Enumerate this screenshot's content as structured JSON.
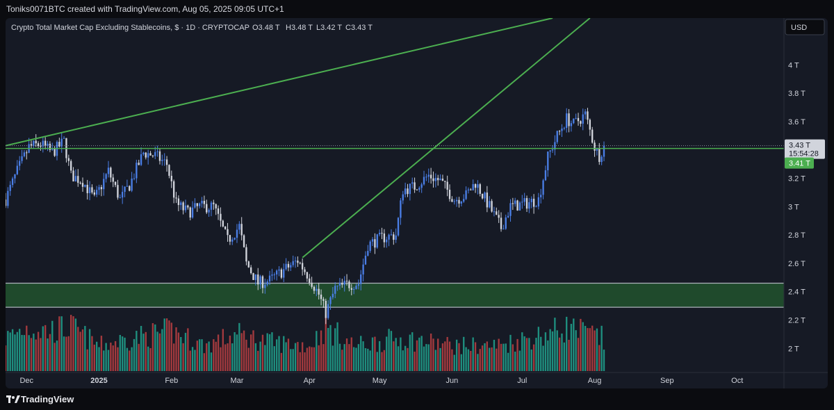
{
  "header": {
    "text": "Toniks0071BTC created with TradingView.com, Aug 05, 2025 09:05 UTC+1"
  },
  "footer": {
    "brand": "TradingView",
    "icon": "tradingview-logo-icon"
  },
  "colors": {
    "background": "#161a25",
    "trendline": "#4caf50",
    "zone_fill": "#1f4a2c",
    "zone_border": "#aeb3bd",
    "bull": "#4a7ee6",
    "bear": "#d1d4dc",
    "vol_up": "#1f8f7f",
    "vol_down": "#a33a3e",
    "text": "#d1d4dc"
  },
  "chart_data": {
    "type": "candlestick",
    "title": "Crypto Total Market Cap Excluding Stablecoins, $ · 1D · CRYPTOCAP",
    "ohlc_label": {
      "o": "O3.48 T",
      "h": "H3.48 T",
      "l": "L3.42 T",
      "c": "C3.43 T"
    },
    "currency": "USD",
    "y_ticks": [
      "4 T",
      "3.8 T",
      "3.6 T",
      "3.4 T",
      "3.2 T",
      "3 T",
      "2.8 T",
      "2.6 T",
      "2.4 T",
      "2.2 T",
      "2 T"
    ],
    "y_tick_values": [
      4.0,
      3.8,
      3.6,
      3.4,
      3.2,
      3.0,
      2.8,
      2.6,
      2.4,
      2.2,
      2.0
    ],
    "ylim": [
      1.83,
      4.33
    ],
    "x_ticks": [
      "Dec",
      "2025",
      "Feb",
      "Mar",
      "Apr",
      "May",
      "Jun",
      "Jul",
      "Aug",
      "Sep",
      "Oct"
    ],
    "x_tick_dates": [
      "2024-12-01",
      "2025-01-01",
      "2025-02-01",
      "2025-03-01",
      "2025-04-01",
      "2025-05-01",
      "2025-06-01",
      "2025-07-01",
      "2025-08-01",
      "2025-09-01",
      "2025-10-01"
    ],
    "xlim": [
      "2024-11-22",
      "2025-10-21"
    ],
    "last_price": {
      "label": "3.43 T",
      "value": 3.43,
      "countdown": "15:54:28"
    },
    "level_marker": {
      "label": "3.41 T",
      "value": 3.41
    },
    "support_zone": {
      "low": 2.29,
      "high": 2.46
    },
    "trendlines": [
      {
        "type": "horizontal",
        "value": 3.41
      },
      {
        "type": "ray",
        "points": [
          [
            "2024-11-22",
            3.43
          ],
          [
            "2025-07-14",
            4.33
          ]
        ]
      },
      {
        "type": "ray",
        "points": [
          [
            "2025-03-29",
            2.64
          ],
          [
            "2025-07-30",
            4.33
          ]
        ]
      }
    ],
    "price_path": [
      [
        "2024-11-22",
        3.05
      ],
      [
        "2024-11-27",
        3.25
      ],
      [
        "2024-12-02",
        3.42
      ],
      [
        "2024-12-07",
        3.44
      ],
      [
        "2024-12-12",
        3.38
      ],
      [
        "2024-12-17",
        3.46
      ],
      [
        "2024-12-20",
        3.22
      ],
      [
        "2024-12-25",
        3.18
      ],
      [
        "2024-12-30",
        3.05
      ],
      [
        "2025-01-05",
        3.25
      ],
      [
        "2025-01-10",
        3.05
      ],
      [
        "2025-01-14",
        3.15
      ],
      [
        "2025-01-20",
        3.38
      ],
      [
        "2025-01-25",
        3.36
      ],
      [
        "2025-01-30",
        3.3
      ],
      [
        "2025-02-03",
        3.02
      ],
      [
        "2025-02-08",
        2.96
      ],
      [
        "2025-02-13",
        3.0
      ],
      [
        "2025-02-19",
        3.0
      ],
      [
        "2025-02-25",
        2.76
      ],
      [
        "2025-03-02",
        2.86
      ],
      [
        "2025-03-05",
        2.6
      ],
      [
        "2025-03-10",
        2.46
      ],
      [
        "2025-03-15",
        2.48
      ],
      [
        "2025-03-20",
        2.54
      ],
      [
        "2025-03-27",
        2.62
      ],
      [
        "2025-04-01",
        2.5
      ],
      [
        "2025-04-05",
        2.38
      ],
      [
        "2025-04-08",
        2.25
      ],
      [
        "2025-04-12",
        2.42
      ],
      [
        "2025-04-17",
        2.45
      ],
      [
        "2025-04-22",
        2.46
      ],
      [
        "2025-04-26",
        2.73
      ],
      [
        "2025-05-02",
        2.78
      ],
      [
        "2025-05-08",
        2.8
      ],
      [
        "2025-05-11",
        3.12
      ],
      [
        "2025-05-16",
        3.14
      ],
      [
        "2025-05-22",
        3.22
      ],
      [
        "2025-05-27",
        3.18
      ],
      [
        "2025-06-02",
        3.05
      ],
      [
        "2025-06-07",
        3.08
      ],
      [
        "2025-06-11",
        3.17
      ],
      [
        "2025-06-17",
        3.0
      ],
      [
        "2025-06-22",
        2.85
      ],
      [
        "2025-06-26",
        3.0
      ],
      [
        "2025-07-02",
        3.02
      ],
      [
        "2025-07-08",
        3.05
      ],
      [
        "2025-07-12",
        3.35
      ],
      [
        "2025-07-16",
        3.5
      ],
      [
        "2025-07-20",
        3.62
      ],
      [
        "2025-07-23",
        3.58
      ],
      [
        "2025-07-28",
        3.65
      ],
      [
        "2025-08-01",
        3.42
      ],
      [
        "2025-08-03",
        3.36
      ],
      [
        "2025-08-05",
        3.43
      ]
    ],
    "volume_profile": [
      [
        "2024-11-22",
        0.45
      ],
      [
        "2024-12-01",
        0.6
      ],
      [
        "2024-12-10",
        0.55
      ],
      [
        "2024-12-20",
        0.6
      ],
      [
        "2025-01-01",
        0.35
      ],
      [
        "2025-01-15",
        0.45
      ],
      [
        "2025-02-01",
        0.55
      ],
      [
        "2025-02-15",
        0.35
      ],
      [
        "2025-03-01",
        0.5
      ],
      [
        "2025-03-15",
        0.4
      ],
      [
        "2025-04-01",
        0.35
      ],
      [
        "2025-04-08",
        0.6
      ],
      [
        "2025-04-20",
        0.35
      ],
      [
        "2025-05-10",
        0.45
      ],
      [
        "2025-06-01",
        0.35
      ],
      [
        "2025-06-20",
        0.35
      ],
      [
        "2025-07-10",
        0.5
      ],
      [
        "2025-07-20",
        0.6
      ],
      [
        "2025-08-05",
        0.45
      ]
    ]
  }
}
